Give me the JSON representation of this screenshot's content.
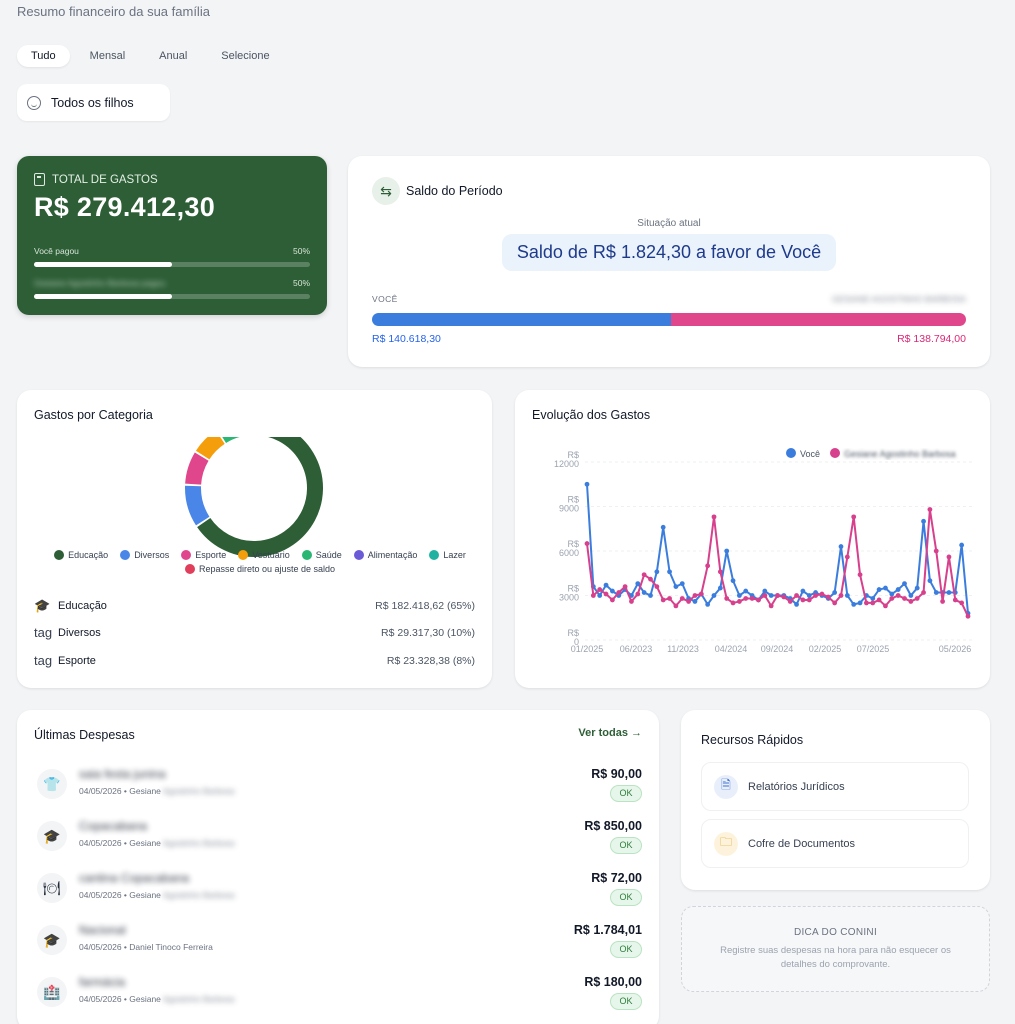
{
  "header": {
    "subtitle": "Resumo financeiro da sua família"
  },
  "tabs": [
    {
      "label": "Tudo",
      "active": true
    },
    {
      "label": "Mensal",
      "active": false
    },
    {
      "label": "Anual",
      "active": false
    },
    {
      "label": "Selecione",
      "active": false
    }
  ],
  "child_filter": {
    "label": "Todos os filhos",
    "icon": "smile-icon"
  },
  "total_card": {
    "title": "TOTAL DE GASTOS",
    "amount": "R$ 279.412,30",
    "rows": [
      {
        "label": "Você pagou",
        "pct": "50%",
        "fill": 0.5
      },
      {
        "label": "Gesiane Agostinho Barbosa pagou",
        "pct": "50%",
        "fill": 0.5
      }
    ]
  },
  "saldo_card": {
    "title": "Saldo do Período",
    "situacao": "Situação atual",
    "message": "Saldo de R$ 1.824,30 a favor de Você",
    "left_label": "VOCÊ",
    "right_label": "GESIANE AGOSTINHO BARBOSA",
    "left_value": "R$ 140.618,30",
    "right_value": "R$ 138.794,00",
    "left_share": 0.503,
    "colors": {
      "left": "#3b7ddd",
      "right": "#e0468c"
    }
  },
  "categoria_card": {
    "title": "Gastos por Categoria",
    "legend": [
      {
        "label": "Educação",
        "color": "#2d5e36"
      },
      {
        "label": "Diversos",
        "color": "#4a86e8"
      },
      {
        "label": "Esporte",
        "color": "#e0468c"
      },
      {
        "label": "Vestuário",
        "color": "#f59e0b"
      },
      {
        "label": "Saúde",
        "color": "#2bb673"
      },
      {
        "label": "Alimentação",
        "color": "#6b5bd6"
      },
      {
        "label": "Lazer",
        "color": "#20b2a0"
      },
      {
        "label": "Repasse direto ou ajuste de saldo",
        "color": "#e03e5a"
      }
    ],
    "rows": [
      {
        "icon": "🎓",
        "icon_name": "graduation-cap-icon",
        "label": "Educação",
        "value": "R$ 182.418,62 (65%)"
      },
      {
        "icon": "tag",
        "icon_name": "tag-icon",
        "label": "Diversos",
        "value": "R$ 29.317,30 (10%)"
      },
      {
        "icon": "tag",
        "icon_name": "tag-icon",
        "label": "Esporte",
        "value": "R$ 23.328,38 (8%)"
      }
    ]
  },
  "chart_data": {
    "type": "pie",
    "title": "Gastos por Categoria",
    "categories": [
      "Educação",
      "Diversos",
      "Esporte",
      "Vestuário",
      "Saúde",
      "Alimentação",
      "Lazer",
      "Repasse direto ou ajuste de saldo"
    ],
    "values": [
      65,
      10,
      8,
      7,
      5,
      2,
      1,
      1
    ],
    "donut": true
  },
  "evolucao_card": {
    "title": "Evolução dos Gastos",
    "legend": [
      {
        "label": "Você",
        "color": "#3b7ddd"
      },
      {
        "label": "Gesiane Agostinho Barbosa",
        "color": "#d6408c"
      }
    ],
    "y_ticks": [
      {
        "cur": "R$",
        "num": "12000",
        "v": 12000
      },
      {
        "cur": "R$",
        "num": "9000",
        "v": 9000
      },
      {
        "cur": "R$",
        "num": "6000",
        "v": 6000
      },
      {
        "cur": "R$",
        "num": "3000",
        "v": 3000
      },
      {
        "cur": "R$",
        "num": "0",
        "v": 0
      }
    ],
    "x_ticks": [
      "01/2025",
      "06/2023",
      "11/2023",
      "04/2024",
      "09/2024",
      "02/2025",
      "07/2025",
      "05/2026"
    ],
    "series": [
      {
        "name": "Você",
        "values": [
          10500,
          3600,
          3000,
          3700,
          3300,
          3000,
          3400,
          3000,
          3800,
          3200,
          3000,
          4600,
          7600,
          4600,
          3600,
          3800,
          2800,
          2600,
          3100,
          2400,
          3000,
          3500,
          6000,
          4000,
          3000,
          3300,
          3000,
          2700,
          3300,
          3000,
          3000,
          3000,
          2800,
          2400,
          3300,
          3000,
          3200,
          3000,
          2800,
          3200,
          6300,
          3000,
          2400,
          2500,
          3000,
          2800,
          3400,
          3500,
          3100,
          3400,
          3800,
          3000,
          3500,
          8000,
          4000,
          3200,
          3200,
          3200,
          3200,
          6400,
          1800
        ]
      },
      {
        "name": "Gesiane Agostinho Barbosa",
        "values": [
          6500,
          3000,
          3400,
          3100,
          2700,
          3200,
          3600,
          2600,
          3100,
          4400,
          4100,
          3600,
          2700,
          2800,
          2300,
          2800,
          2600,
          3000,
          3100,
          5000,
          8300,
          4600,
          2800,
          2500,
          2600,
          2800,
          2800,
          2700,
          3000,
          2300,
          3000,
          2900,
          2600,
          3000,
          2700,
          2700,
          3000,
          3100,
          2900,
          2500,
          3000,
          5600,
          8300,
          4400,
          2500,
          2500,
          2700,
          2300,
          2800,
          3000,
          2800,
          2600,
          2800,
          3200,
          8800,
          6000,
          2600,
          5600,
          2700,
          2500,
          1600
        ]
      }
    ],
    "ylim": [
      0,
      12000
    ]
  },
  "despesas": {
    "title": "Últimas Despesas",
    "ver_todas": "Ver todas →",
    "items": [
      {
        "icon": "👕",
        "icon_name": "shirt-icon",
        "name": "saia festa junina",
        "date": "04/05/2026 • Gesiane ",
        "who_blur": "Agostinho Barbosa",
        "value": "R$ 90,00",
        "status": "OK",
        "blur_name": true
      },
      {
        "icon": "🎓",
        "icon_name": "graduation-cap-icon",
        "name": "Copacabana",
        "date": "04/05/2026 • Gesiane ",
        "who_blur": "Agostinho Barbosa",
        "value": "R$ 850,00",
        "status": "OK",
        "blur_name": true
      },
      {
        "icon": "🍽",
        "icon_name": "plate-icon",
        "name": "cantina Copacabana",
        "date": "04/05/2026 • Gesiane ",
        "who_blur": "Agostinho Barbosa",
        "value": "R$ 72,00",
        "status": "OK",
        "blur_name": true
      },
      {
        "icon": "🎓",
        "icon_name": "graduation-cap-icon",
        "name": "Nacional",
        "date": "04/05/2026 • Daniel Tinoco Ferreira",
        "who_blur": "",
        "value": "R$ 1.784,01",
        "status": "OK",
        "blur_name": true
      },
      {
        "icon": "🏥",
        "icon_name": "hospital-icon",
        "name": "farmácia",
        "date": "04/05/2026 • Gesiane ",
        "who_blur": "Agostinho Barbosa",
        "value": "R$ 180,00",
        "status": "OK",
        "blur_name": true
      }
    ]
  },
  "recursos": {
    "title": "Recursos Rápidos",
    "items": [
      {
        "label": "Relatórios Jurídicos",
        "icon": "document-icon",
        "bg": "#e8effb",
        "fg": "#3b6fd1"
      },
      {
        "label": "Cofre de Documentos",
        "icon": "folder-icon",
        "bg": "#fdf3dc",
        "fg": "#d69e1a"
      }
    ]
  },
  "dica": {
    "title": "DICA DO CONINI",
    "text": "Registre suas despesas na hora para não esquecer os detalhes do comprovante."
  }
}
